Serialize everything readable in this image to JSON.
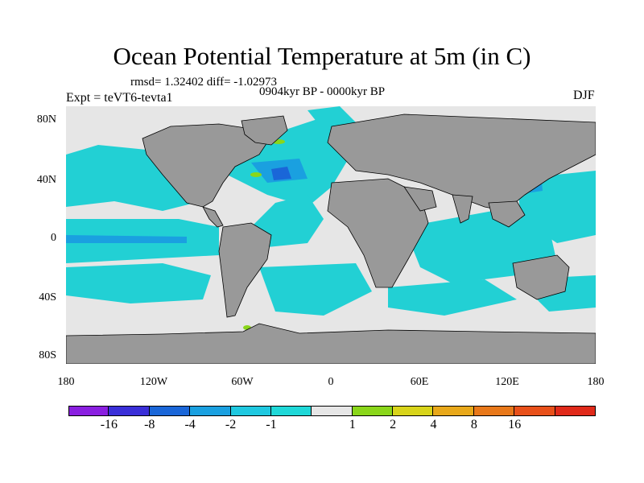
{
  "title": "Ocean Potential Temperature at 5m (in C)",
  "stats": "rmsd= 1.32402  diff= -1.02973",
  "period": "0904kyr BP - 0000kyr BP",
  "experiment": "Expt = teVT6-tevta1",
  "season": "DJF",
  "lat_labels": [
    "80N",
    "40N",
    "0",
    "40S",
    "80S"
  ],
  "lon_labels": [
    "180",
    "120W",
    "60W",
    "0",
    "60E",
    "120E",
    "180"
  ],
  "colorbar": {
    "colors": [
      "#8a1fe0",
      "#3a2fd8",
      "#1a66d8",
      "#1aa0e0",
      "#1fc8e0",
      "#1fd8d8",
      "#e6e6e6",
      "#8ad61a",
      "#d8d41a",
      "#e8a81a",
      "#e8781a",
      "#e8501a",
      "#e02a1a"
    ],
    "labels": [
      "-16",
      "-8",
      "-4",
      "-2",
      "-1",
      "1",
      "2",
      "4",
      "8",
      "16"
    ]
  },
  "colors": {
    "land": "#999999",
    "ocean_cool": "#22d0d4",
    "ocean_neutral": "#e6e6e6",
    "ocean_cold": "#1aa0e0",
    "ocean_colder": "#1a66d8",
    "ocean_warm": "#8ad61a"
  }
}
